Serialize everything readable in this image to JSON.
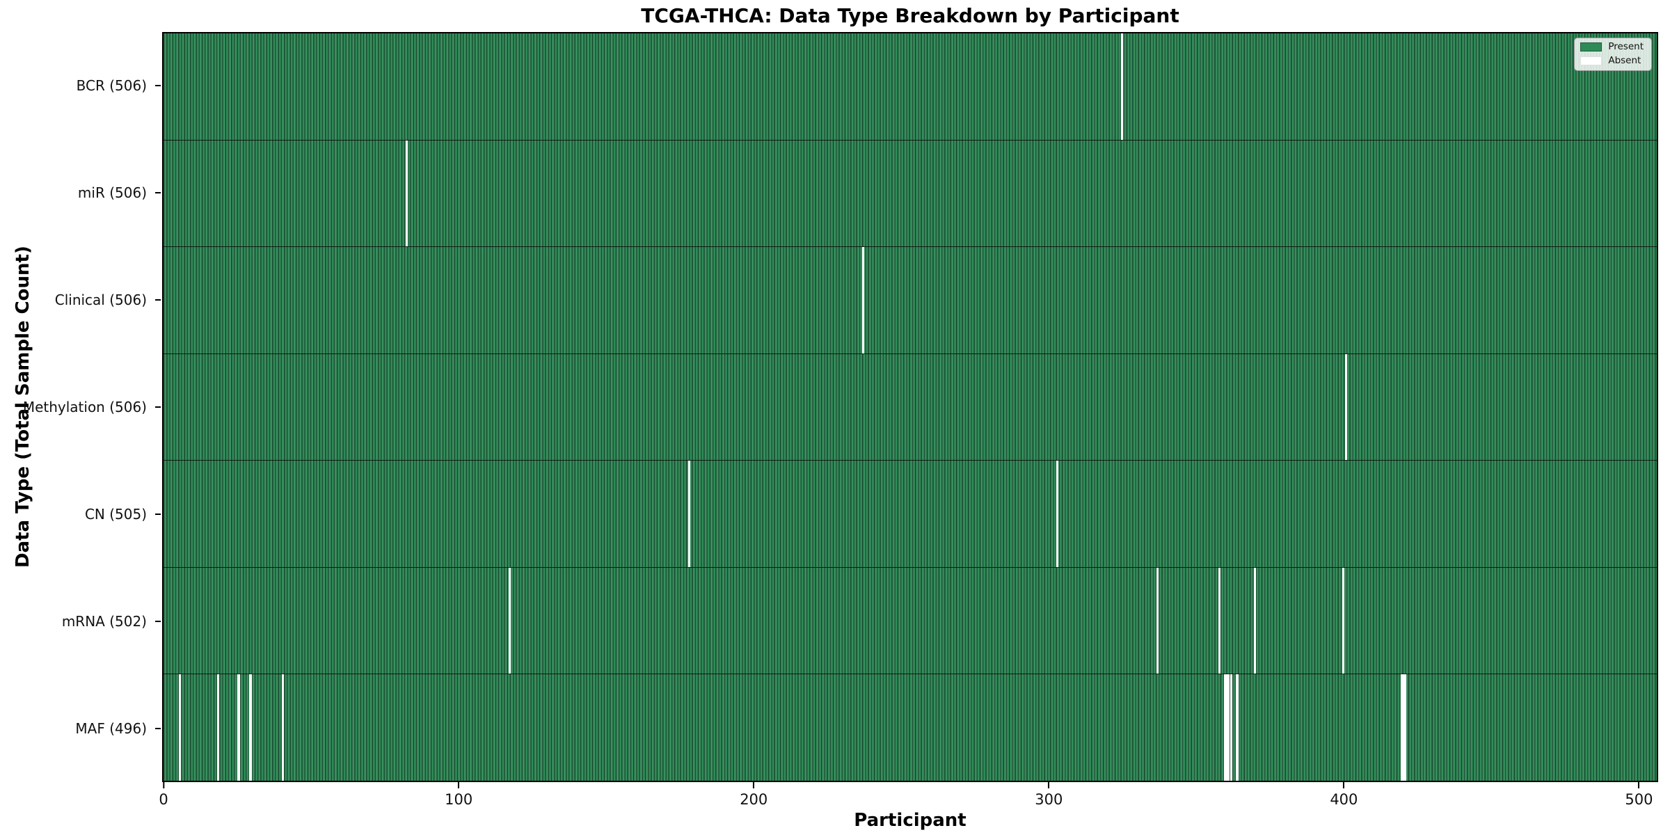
{
  "chart_data": {
    "type": "heatmap",
    "title": "TCGA-THCA: Data Type Breakdown by Participant",
    "xlabel": "Participant",
    "ylabel": "Data Type (Total Sample Count)",
    "n_participants": 507,
    "xlim": [
      -0.5,
      506.5
    ],
    "x_ticks": [
      0,
      100,
      200,
      300,
      400,
      500
    ],
    "grid": false,
    "legend": {
      "position": "upper-right",
      "entries": [
        {
          "label": "Present",
          "color": "#2e8b57"
        },
        {
          "label": "Absent",
          "color": "#ffffff"
        }
      ]
    },
    "rows": [
      {
        "label": "BCR",
        "total": 506,
        "tick_label": "BCR (506)",
        "absent_participants": [
          325
        ]
      },
      {
        "label": "miR",
        "total": 506,
        "tick_label": "miR (506)",
        "absent_participants": [
          82
        ]
      },
      {
        "label": "Clinical",
        "total": 506,
        "tick_label": "Clinical (506)",
        "absent_participants": [
          237
        ]
      },
      {
        "label": "Methylation",
        "total": 506,
        "tick_label": "Methylation (506)",
        "absent_participants": [
          401
        ]
      },
      {
        "label": "CN",
        "total": 505,
        "tick_label": "CN (505)",
        "absent_participants": [
          178,
          303
        ]
      },
      {
        "label": "mRNA",
        "total": 502,
        "tick_label": "mRNA (502)",
        "absent_participants": [
          117,
          337,
          358,
          370,
          400
        ]
      },
      {
        "label": "MAF",
        "total": 496,
        "tick_label": "MAF (496)",
        "absent_participants": [
          5,
          18,
          25,
          29,
          40,
          360,
          361,
          362,
          364,
          420,
          421
        ]
      }
    ],
    "colors": {
      "present": "#2e8b57",
      "absent": "#ffffff",
      "bar_edge": "rgba(0,0,0,0.50)",
      "row_separator": "#0a0a0a",
      "axis": "#000000",
      "text": "#000000",
      "background": "#ffffff"
    }
  }
}
